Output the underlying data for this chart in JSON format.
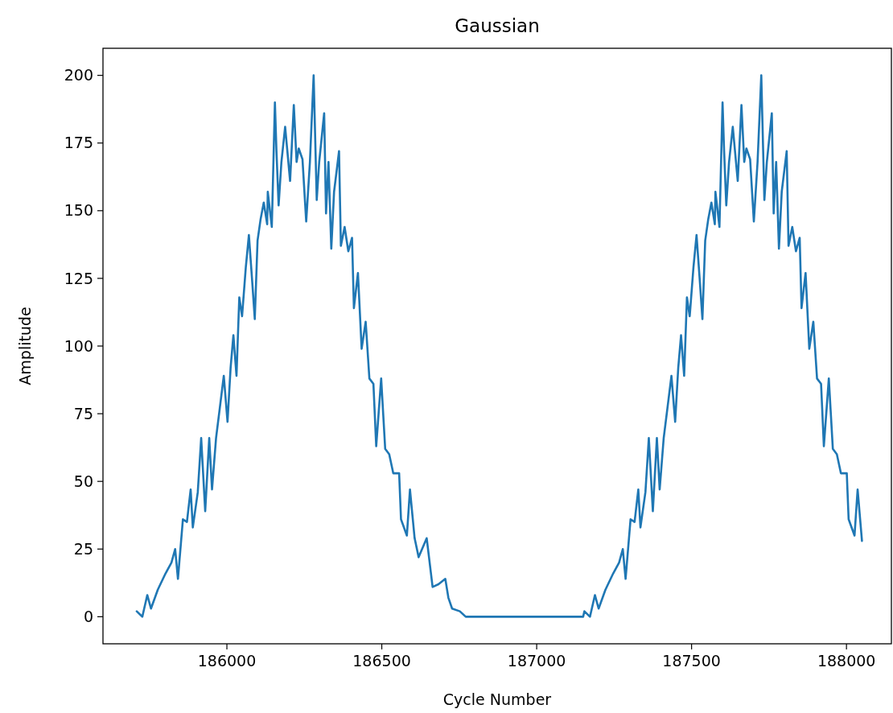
{
  "chart_data": {
    "type": "line",
    "title": "Gaussian",
    "xlabel": "Cycle Number",
    "ylabel": "Amplitude",
    "xlim": [
      185600,
      188145
    ],
    "ylim": [
      -10,
      210
    ],
    "xticks": [
      186000,
      186500,
      187000,
      187500,
      188000
    ],
    "yticks": [
      0,
      25,
      50,
      75,
      100,
      125,
      150,
      175,
      200
    ],
    "series": [
      {
        "color": "#1f77b4",
        "x": [
          185709,
          185727,
          185743,
          185755,
          185777,
          185802,
          185821,
          185833,
          185842,
          185858,
          185871,
          185883,
          185890,
          185906,
          185917,
          185930,
          185943,
          185952,
          185965,
          185977,
          185990,
          186002,
          186012,
          186021,
          186031,
          186040,
          186049,
          186061,
          186071,
          186081,
          186090,
          186099,
          186109,
          186119,
          186130,
          186132,
          186145,
          186155,
          186160,
          186167,
          186176,
          186188,
          186204,
          186216,
          186225,
          186232,
          186244,
          186256,
          186268,
          186280,
          186290,
          186298,
          186314,
          186320,
          186328,
          186337,
          186346,
          186362,
          186368,
          186380,
          186392,
          186404,
          186410,
          186423,
          186435,
          186448,
          186460,
          186473,
          186482,
          186498,
          186511,
          186524,
          186537,
          186556,
          186562,
          186581,
          186591,
          186606,
          186619,
          186645,
          186664,
          186683,
          186705,
          186715,
          186727,
          186752,
          186771,
          187150,
          187154,
          187172,
          187188,
          187200,
          187222,
          187247,
          187266,
          187278,
          187287,
          187303,
          187316,
          187328,
          187335,
          187351,
          187362,
          187375,
          187388,
          187397,
          187410,
          187422,
          187435,
          187447,
          187457,
          187466,
          187476,
          187485,
          187494,
          187506,
          187516,
          187526,
          187535,
          187544,
          187554,
          187564,
          187575,
          187577,
          187590,
          187600,
          187605,
          187612,
          187621,
          187633,
          187649,
          187661,
          187670,
          187677,
          187689,
          187701,
          187713,
          187725,
          187735,
          187743,
          187759,
          187765,
          187773,
          187782,
          187791,
          187807,
          187813,
          187825,
          187837,
          187849,
          187855,
          187868,
          187880,
          187893,
          187905,
          187918,
          187927,
          187943,
          187956,
          187969,
          187982,
          188001,
          188007,
          188026,
          188036,
          188050
        ],
        "values": [
          2,
          0,
          8,
          3,
          10,
          16,
          20,
          25,
          14,
          36,
          35,
          47,
          33,
          46,
          66,
          39,
          66,
          47,
          66,
          77,
          89,
          72,
          92,
          104,
          89,
          118,
          111,
          129,
          141,
          125,
          110,
          139,
          147,
          153,
          145,
          157,
          144,
          190,
          172,
          152,
          168,
          181,
          161,
          189,
          168,
          173,
          169,
          146,
          168,
          200,
          154,
          168,
          186,
          149,
          168,
          136,
          157,
          172,
          137,
          144,
          135,
          140,
          114,
          127,
          99,
          109,
          88,
          86,
          63,
          88,
          62,
          60,
          53,
          53,
          36,
          30,
          47,
          29,
          22,
          29,
          11,
          12,
          14,
          7,
          3,
          2,
          0,
          0,
          2,
          0,
          8,
          3,
          10,
          16,
          20,
          25,
          14,
          36,
          35,
          47,
          33,
          46,
          66,
          39,
          66,
          47,
          66,
          77,
          89,
          72,
          92,
          104,
          89,
          118,
          111,
          129,
          141,
          125,
          110,
          139,
          147,
          153,
          145,
          157,
          144,
          190,
          172,
          152,
          168,
          181,
          161,
          189,
          168,
          173,
          169,
          146,
          168,
          200,
          154,
          168,
          186,
          149,
          168,
          136,
          157,
          172,
          137,
          144,
          135,
          140,
          114,
          127,
          99,
          109,
          88,
          86,
          63,
          88,
          62,
          60,
          53,
          53,
          36,
          30,
          47,
          28
        ]
      }
    ]
  }
}
